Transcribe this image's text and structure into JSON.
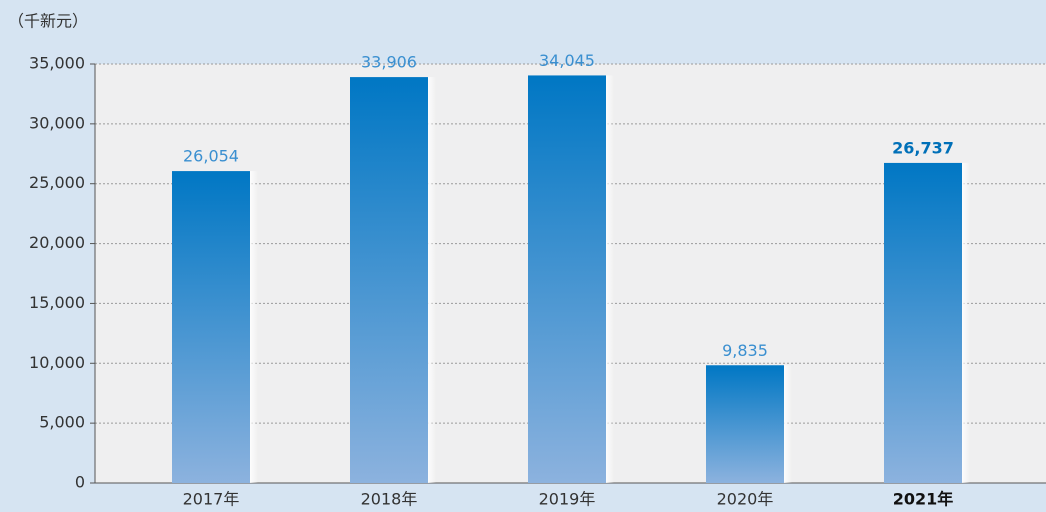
{
  "chart_data": {
    "type": "bar",
    "unit_label": "（千新元）",
    "categories": [
      "2017年",
      "2018年",
      "2019年",
      "2020年",
      "2021年"
    ],
    "values": [
      26054,
      33906,
      34045,
      9835,
      26737
    ],
    "value_labels": [
      "26,054",
      "33,906",
      "34,045",
      "9,835",
      "26,737"
    ],
    "color": "#0077c4",
    "ylim": [
      0,
      35000
    ],
    "yticks": [
      0,
      {
        "value": 5000,
        "label": "5,000"
      },
      {
        "value": 10000,
        "label": "10,000"
      },
      {
        "value": 15000,
        "label": "15,000"
      },
      {
        "value": 20000,
        "label": "20,000"
      },
      {
        "value": 25000,
        "label": "25,000"
      },
      {
        "value": 30000,
        "label": "30,000"
      },
      {
        "value": 35000,
        "label": "35,000"
      }
    ],
    "grid": true
  }
}
